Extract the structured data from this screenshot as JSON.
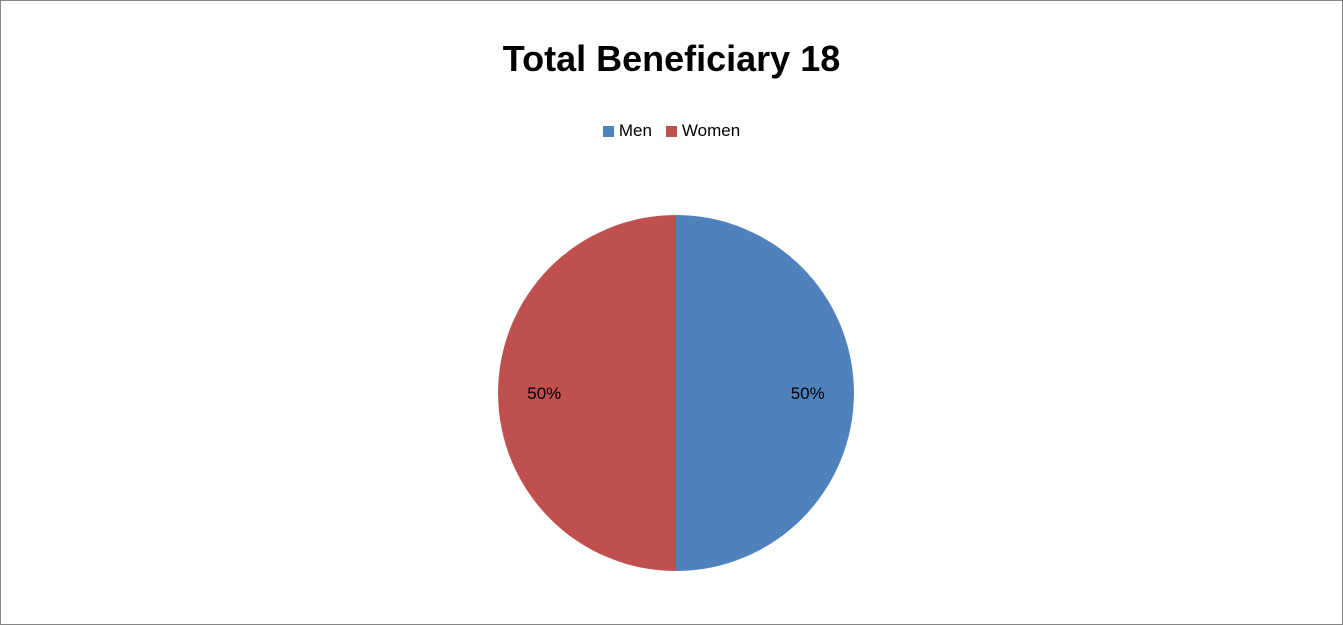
{
  "chart_data": {
    "type": "pie",
    "title": "Total Beneficiary 18",
    "legend_position": "top",
    "categories": [
      "Men",
      "Women"
    ],
    "values": [
      50,
      50
    ],
    "data_labels": [
      "50%",
      "50%"
    ],
    "colors": [
      "#4F81BD",
      "#C0504D"
    ]
  }
}
